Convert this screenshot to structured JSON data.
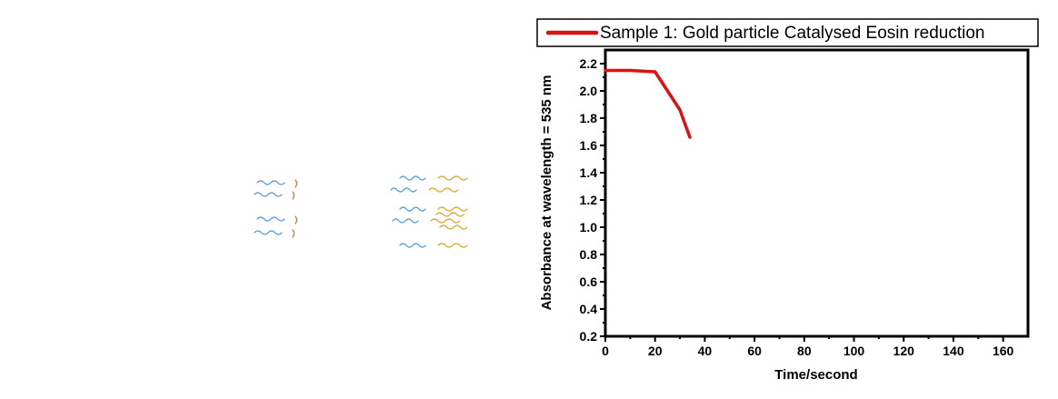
{
  "chart_data": {
    "type": "line",
    "title": "",
    "xlabel": "Time/second",
    "ylabel": "Absorbance at wavelength = 535 nm",
    "xlim": [
      0,
      170
    ],
    "ylim": [
      0.2,
      2.3
    ],
    "x_ticks": [
      "0",
      "20",
      "40",
      "60",
      "80",
      "100",
      "120",
      "140",
      "160"
    ],
    "y_ticks": [
      "0.2",
      "0.4",
      "0.6",
      "0.8",
      "1.0",
      "1.2",
      "1.4",
      "1.6",
      "1.8",
      "2.0",
      "2.2"
    ],
    "grid": false,
    "legend_position": "top",
    "series": [
      {
        "name": "Sample 1: Gold particle Catalysed Eosin reduction",
        "color": "#e01010",
        "x": [
          0,
          10,
          20,
          25,
          30,
          32,
          34
        ],
        "y": [
          2.15,
          2.15,
          2.14,
          2.0,
          1.86,
          1.76,
          1.66
        ]
      }
    ]
  },
  "decorations": {
    "blue_color": "#4a9be0",
    "gold_color": "#d9a51e",
    "brown_color": "#b8782a"
  }
}
